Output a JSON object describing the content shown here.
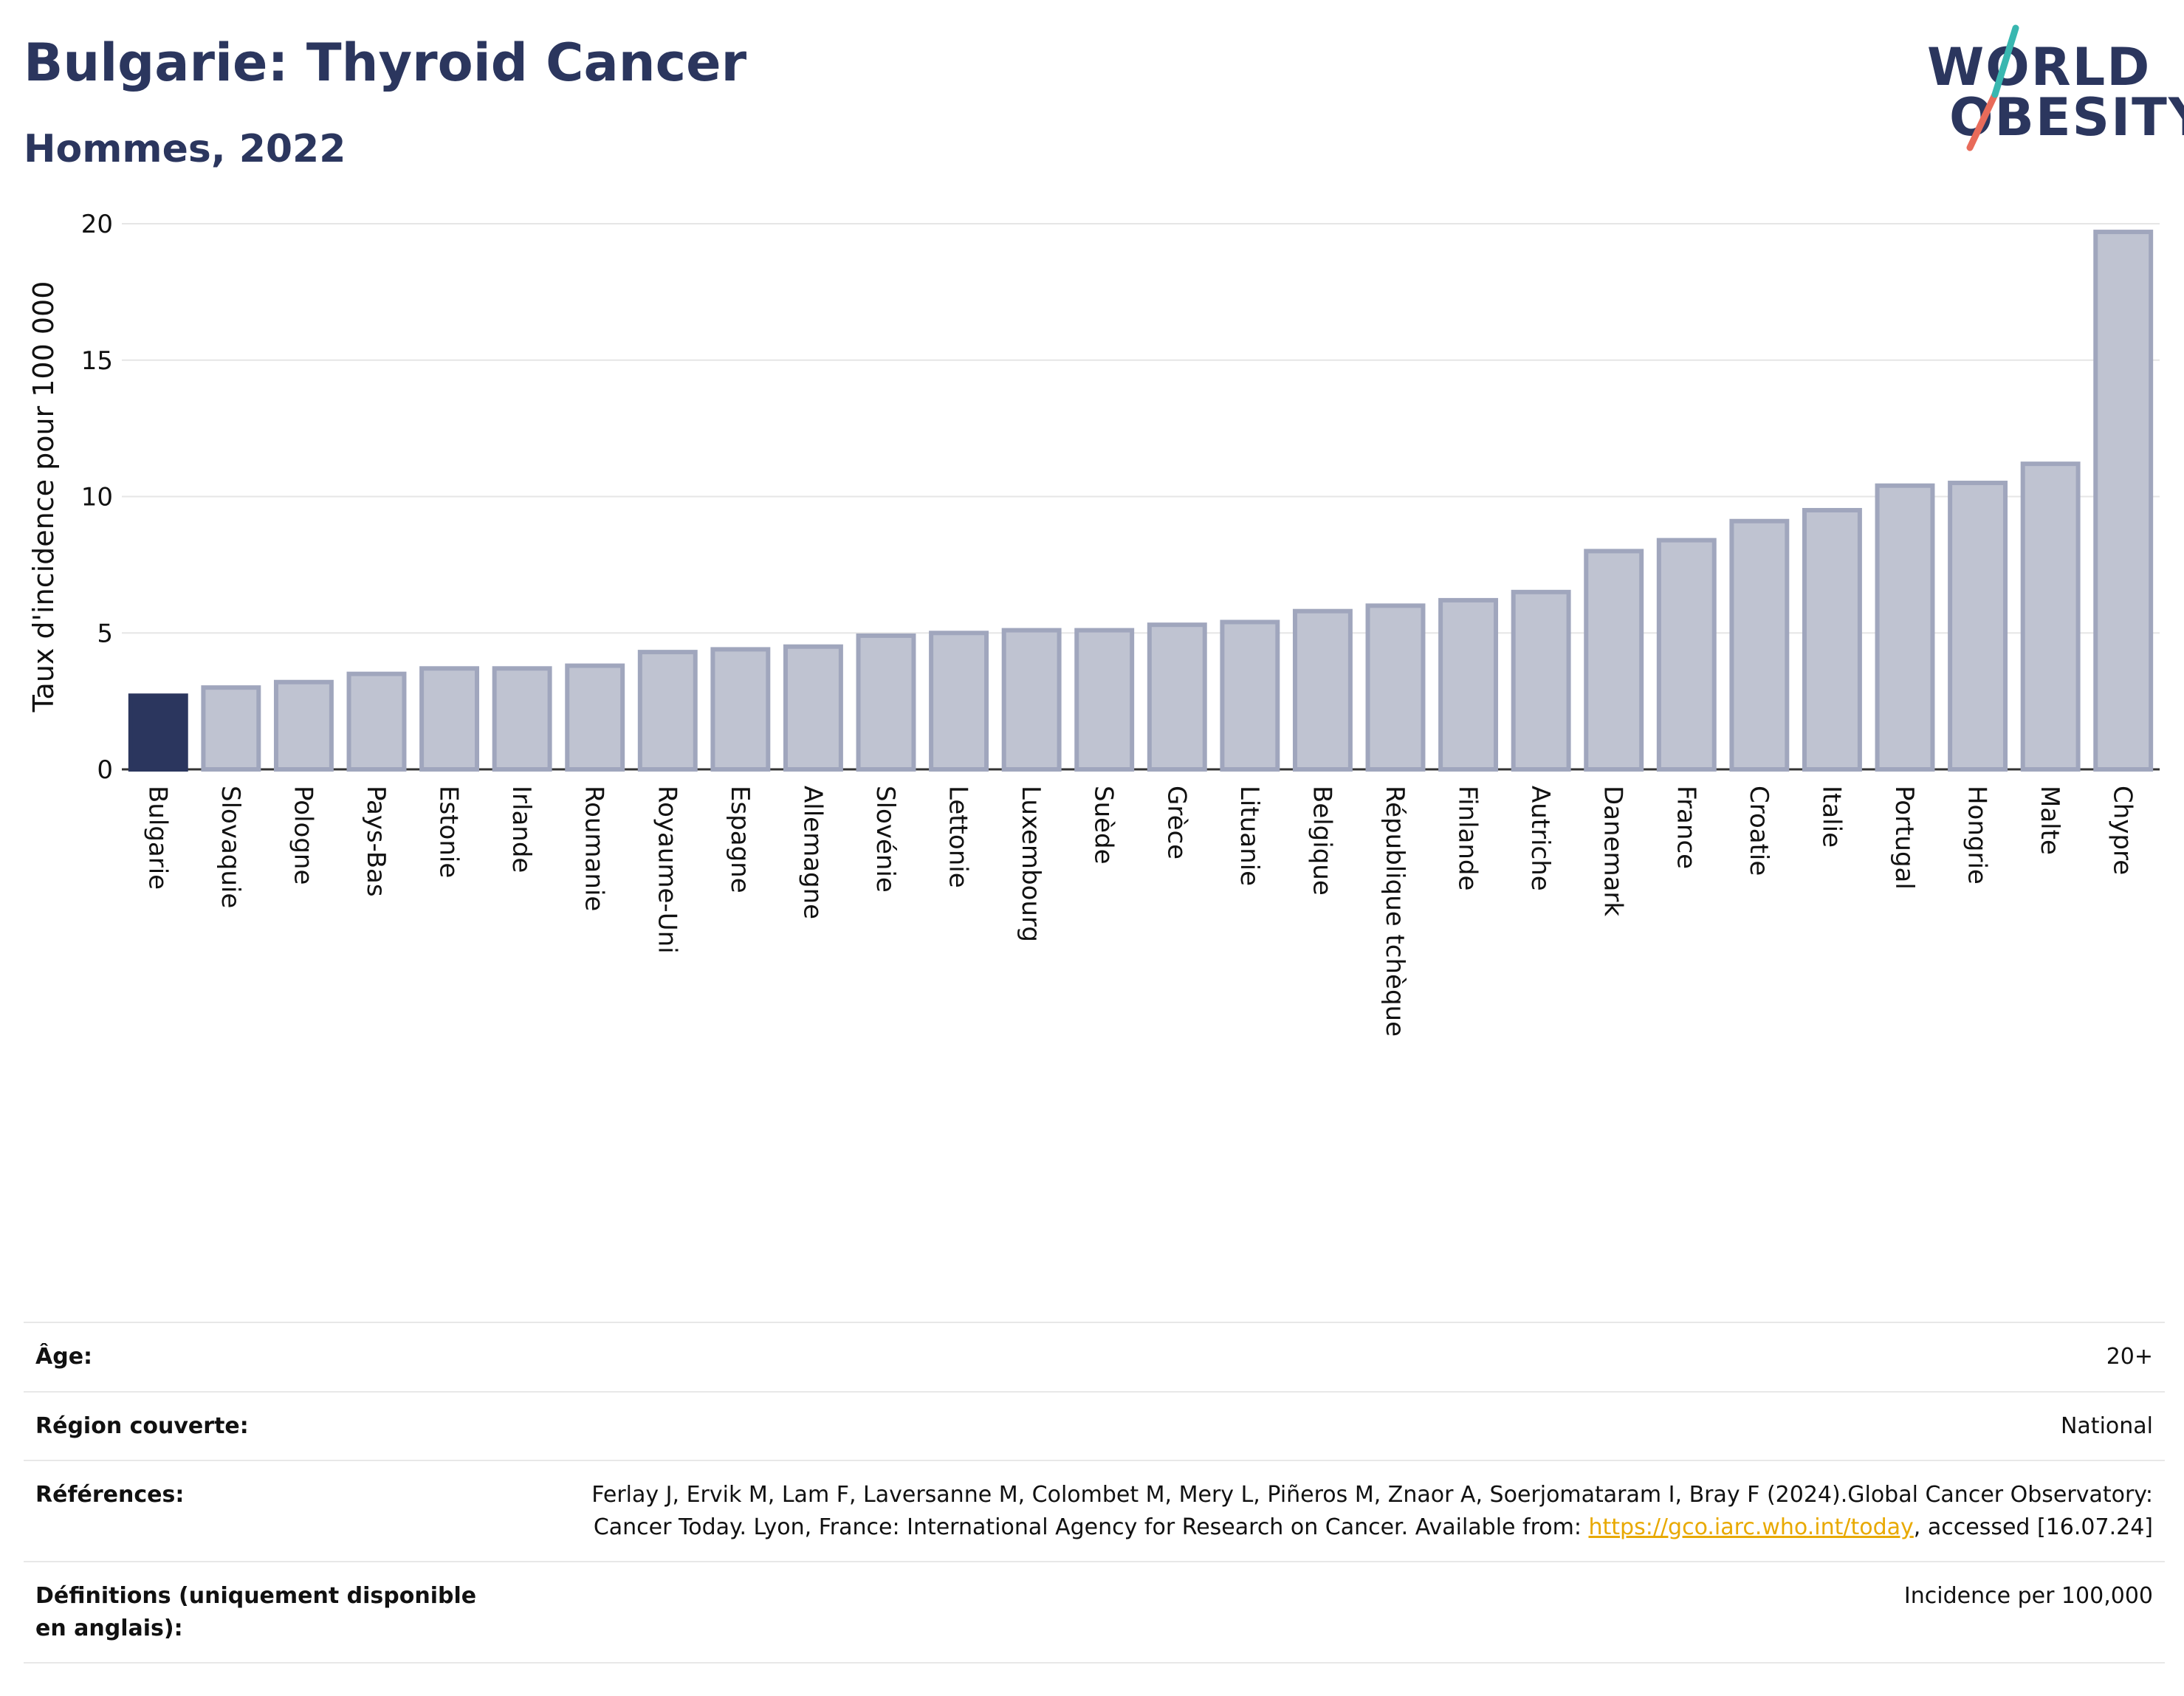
{
  "header": {
    "title": "Bulgarie: Thyroid Cancer",
    "subtitle": "Hommes, 2022"
  },
  "logo": {
    "line1": "WORLD",
    "line2": "OBESITY"
  },
  "chart_data": {
    "type": "bar",
    "ylabel": "Taux d'incidence pour 100 000",
    "ylim": [
      0,
      20
    ],
    "yticks": [
      0,
      5,
      10,
      15,
      20
    ],
    "grid": true,
    "highlight": "Bulgarie",
    "colors": {
      "highlight": "#2b365e",
      "bar_fill": "#bfc3d1",
      "bar_stroke": "#a0a6bd",
      "grid": "#e6e6e6"
    },
    "categories": [
      "Bulgarie",
      "Slovaquie",
      "Pologne",
      "Pays-Bas",
      "Estonie",
      "Irlande",
      "Roumanie",
      "Royaume-Uni",
      "Espagne",
      "Allemagne",
      "Slovénie",
      "Lettonie",
      "Luxembourg",
      "Suède",
      "Grèce",
      "Lituanie",
      "Belgique",
      "République tchèque",
      "Finlande",
      "Autriche",
      "Danemark",
      "France",
      "Croatie",
      "Italie",
      "Portugal",
      "Hongrie",
      "Malte",
      "Chypre"
    ],
    "values": [
      2.7,
      3.0,
      3.2,
      3.5,
      3.7,
      3.7,
      3.8,
      4.3,
      4.4,
      4.5,
      4.9,
      5.0,
      5.1,
      5.1,
      5.3,
      5.4,
      5.8,
      6.0,
      6.2,
      6.5,
      8.0,
      8.4,
      9.1,
      9.5,
      10.4,
      10.5,
      11.2,
      19.7
    ]
  },
  "meta": {
    "age_label": "Âge:",
    "age_value": "20+",
    "region_label": "Région couverte:",
    "region_value": "National",
    "refs_label": "Références:",
    "refs_text_1": "Ferlay J, Ervik M, Lam F, Laversanne M, Colombet M, Mery L, Piñeros M, Znaor A, Soerjomataram I, Bray F (2024).Global Cancer Observatory: Cancer Today. Lyon, France: International Agency for Research on Cancer. Available from: ",
    "refs_link": "https://gco.iarc.who.int/today",
    "refs_text_2": ", accessed [16.07.24]",
    "defs_label": "Définitions (uniquement disponible en anglais):",
    "defs_value": "Incidence per 100,000"
  }
}
